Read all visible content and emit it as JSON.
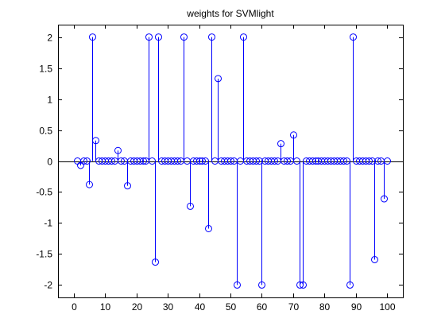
{
  "chart_data": {
    "type": "stem",
    "title": "weights for SVMlight",
    "xlabel": "",
    "ylabel": "",
    "xlim": [
      -5,
      105
    ],
    "ylim": [
      -2.2,
      2.2
    ],
    "xticks": [
      0,
      10,
      20,
      30,
      40,
      50,
      60,
      70,
      80,
      90,
      100
    ],
    "yticks": [
      -2,
      -1.5,
      -1,
      -0.5,
      0,
      0.5,
      1,
      1.5,
      2
    ],
    "xtick_labels": [
      "0",
      "10",
      "20",
      "30",
      "40",
      "50",
      "60",
      "70",
      "80",
      "90",
      "100"
    ],
    "ytick_labels": [
      "-2",
      "-1.5",
      "-1",
      "-0.5",
      "0",
      "0.5",
      "1",
      "1.5",
      "2"
    ],
    "grid": false,
    "baseline": 0,
    "series": [
      {
        "color": "#0000ff",
        "marker": "circle",
        "x": [
          1,
          2,
          3,
          4,
          5,
          6,
          7,
          8,
          9,
          10,
          11,
          12,
          13,
          14,
          15,
          16,
          17,
          18,
          19,
          20,
          21,
          22,
          23,
          24,
          25,
          26,
          27,
          28,
          29,
          30,
          31,
          32,
          33,
          34,
          35,
          36,
          37,
          38,
          39,
          40,
          41,
          42,
          43,
          44,
          45,
          46,
          47,
          48,
          49,
          50,
          51,
          52,
          53,
          54,
          55,
          56,
          57,
          58,
          59,
          60,
          61,
          62,
          63,
          64,
          65,
          66,
          67,
          68,
          69,
          70,
          71,
          72,
          73,
          74,
          75,
          76,
          77,
          78,
          79,
          80,
          81,
          82,
          83,
          84,
          85,
          86,
          87,
          88,
          89,
          90,
          91,
          92,
          93,
          94,
          95,
          96,
          97,
          98,
          99,
          100
        ],
        "y": [
          0,
          -0.07,
          0,
          0,
          -0.38,
          2,
          0.33,
          0,
          0,
          0,
          0,
          0,
          0,
          0.17,
          0,
          0,
          -0.4,
          0,
          0,
          0,
          0,
          0,
          0,
          2,
          0,
          -1.63,
          2,
          0,
          0,
          0,
          0,
          0,
          0,
          0,
          2,
          0,
          -0.73,
          0,
          0,
          0,
          0,
          0,
          -1.09,
          2,
          0,
          1.33,
          0,
          0,
          0,
          0,
          0,
          -2,
          0,
          2,
          0,
          0,
          0,
          0,
          0,
          -2,
          0,
          0,
          0,
          0,
          0,
          0.28,
          0,
          0,
          0,
          0.42,
          0,
          -2,
          -2,
          0,
          0,
          0,
          0,
          0,
          0,
          0,
          0,
          0,
          0,
          0,
          0,
          0,
          0,
          -2,
          2,
          0,
          0,
          0,
          0,
          0,
          0,
          -1.59,
          0,
          0,
          -0.61,
          0
        ]
      }
    ]
  }
}
